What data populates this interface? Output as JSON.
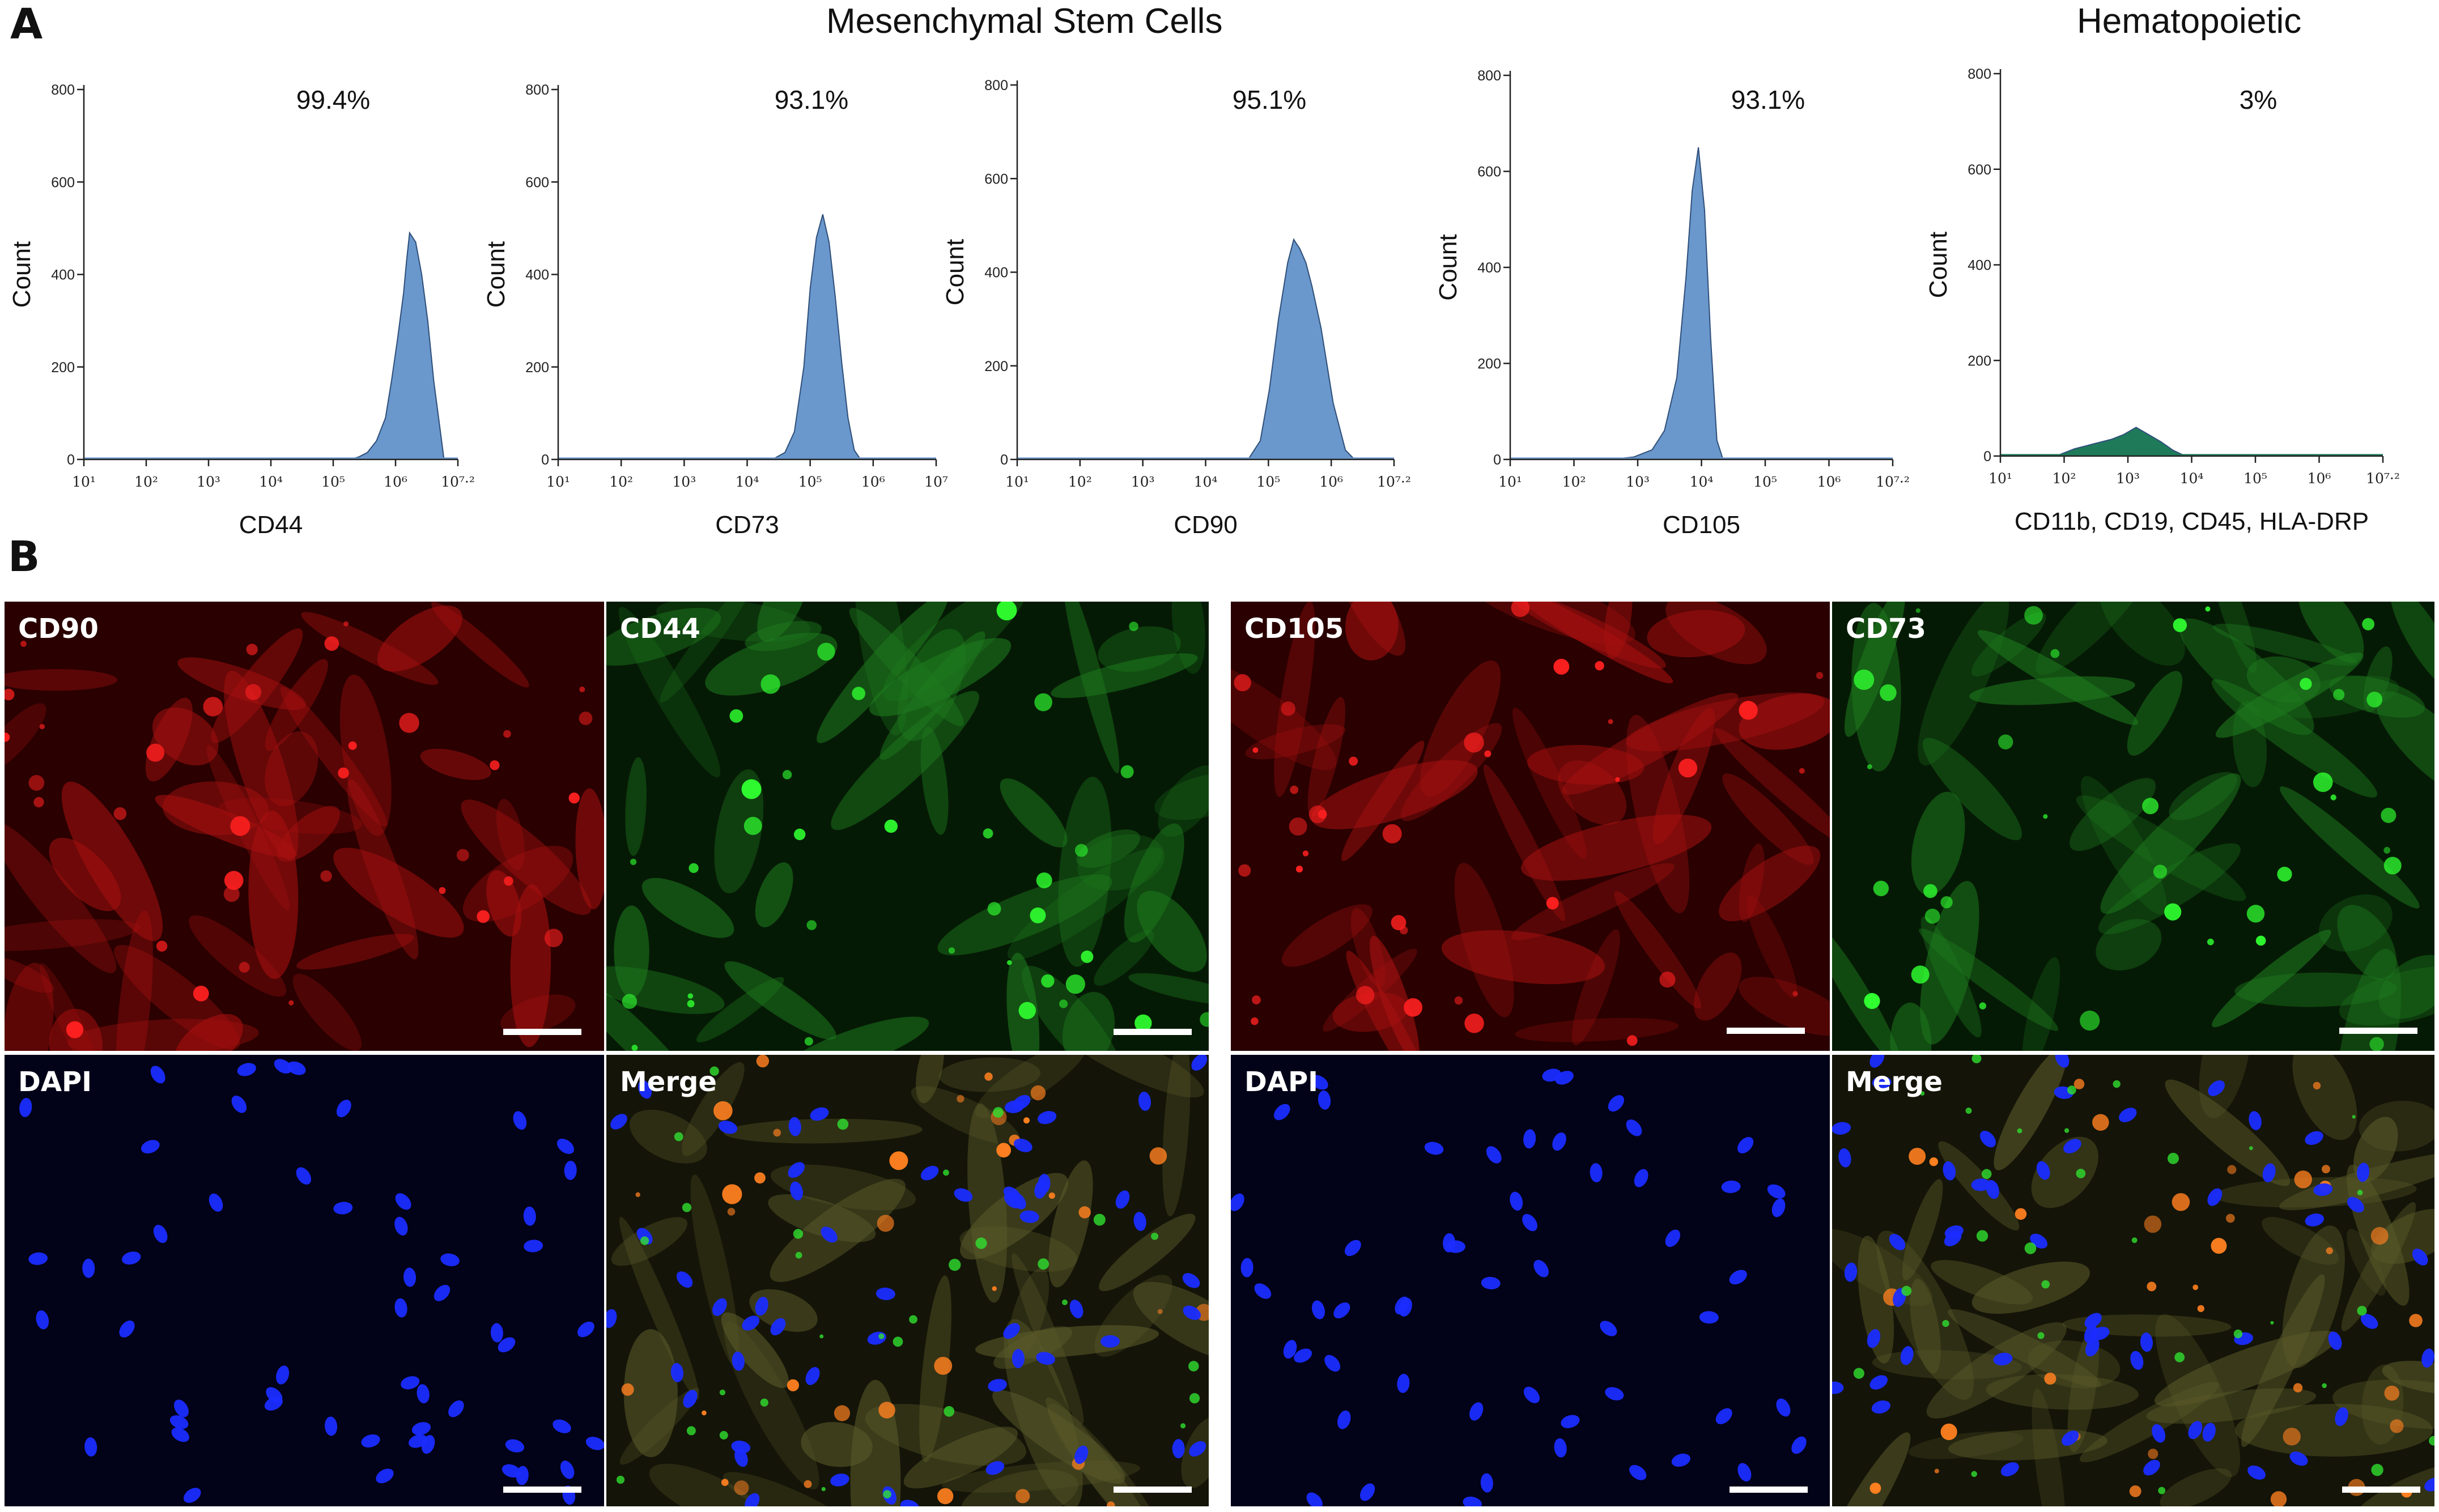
{
  "figure": {
    "panel_a_letter": "A",
    "panel_b_letter": "B",
    "groups": [
      {
        "title": "Mesenchymal Stem Cells"
      },
      {
        "title": "Hematopoietic"
      }
    ]
  },
  "chart_data": [
    {
      "type": "area",
      "ylabel": "Count",
      "xlabel": "CD44",
      "percentage": "99.4%",
      "color": "#6a98cc",
      "scale": "log10",
      "xlim": [
        1,
        7.2
      ],
      "ylim": [
        0,
        800
      ],
      "yticks": [
        "0",
        "200",
        "400",
        "600",
        "800"
      ],
      "xticks": [
        "10¹",
        "10²",
        "10³",
        "10⁴",
        "10⁵",
        "10⁶",
        "10⁷·²"
      ],
      "x": [
        5.4,
        5.55,
        5.7,
        5.85,
        6.0,
        6.1,
        6.2,
        6.3,
        6.35,
        6.4,
        6.5,
        6.6,
        6.7,
        6.8,
        6.9,
        6.97
      ],
      "y": [
        0,
        5,
        15,
        40,
        90,
        170,
        260,
        360,
        430,
        490,
        470,
        400,
        300,
        170,
        70,
        0
      ]
    },
    {
      "type": "area",
      "ylabel": "Count",
      "xlabel": "CD73",
      "percentage": "93.1%",
      "color": "#6a98cc",
      "scale": "log10",
      "xlim": [
        1,
        7
      ],
      "ylim": [
        0,
        800
      ],
      "yticks": [
        "0",
        "200",
        "400",
        "600",
        "800"
      ],
      "xticks": [
        "10¹",
        "10²",
        "10³",
        "10⁴",
        "10⁵",
        "10⁶",
        "10⁷"
      ],
      "x": [
        4.4,
        4.6,
        4.75,
        4.9,
        5.0,
        5.1,
        5.2,
        5.3,
        5.4,
        5.5,
        5.6,
        5.7,
        5.8
      ],
      "y": [
        0,
        15,
        60,
        200,
        370,
        480,
        530,
        470,
        350,
        210,
        90,
        20,
        0
      ]
    },
    {
      "type": "area",
      "ylabel": "Count",
      "xlabel": "CD90",
      "percentage": "95.1%",
      "color": "#6a98cc",
      "scale": "log10",
      "xlim": [
        1,
        7.2
      ],
      "ylim": [
        0,
        800
      ],
      "yticks": [
        "0",
        "200",
        "400",
        "600",
        "800"
      ],
      "xticks": [
        "10¹",
        "10²",
        "10³",
        "10⁴",
        "10⁵",
        "10⁶",
        "10⁷·²"
      ],
      "x": [
        4.8,
        5.0,
        5.15,
        5.3,
        5.45,
        5.55,
        5.65,
        5.75,
        5.85,
        6.0,
        6.2,
        6.4,
        6.55
      ],
      "y": [
        0,
        40,
        150,
        300,
        420,
        470,
        450,
        420,
        370,
        280,
        120,
        20,
        0
      ]
    },
    {
      "type": "area",
      "ylabel": "Count",
      "xlabel": "CD105",
      "percentage": "93.1%",
      "color": "#6a98cc",
      "scale": "log10",
      "xlim": [
        1,
        7.2
      ],
      "ylim": [
        0,
        800
      ],
      "yticks": [
        "0",
        "200",
        "400",
        "600",
        "800"
      ],
      "xticks": [
        "10¹",
        "10²",
        "10³",
        "10⁴",
        "10⁵",
        "10⁶",
        "10⁷·²"
      ],
      "x": [
        2.6,
        3.0,
        3.3,
        3.5,
        3.7,
        3.85,
        3.95,
        4.05,
        4.15,
        4.25,
        4.35,
        4.45
      ],
      "y": [
        0,
        5,
        20,
        60,
        170,
        380,
        560,
        650,
        520,
        250,
        40,
        0
      ]
    },
    {
      "type": "area",
      "ylabel": "Count",
      "xlabel": "CD11b, CD19, CD45, HLA-DRP",
      "percentage": "3%",
      "color": "#1f7a5a",
      "scale": "log10",
      "xlim": [
        1,
        7.2
      ],
      "ylim": [
        0,
        800
      ],
      "yticks": [
        "0",
        "200",
        "400",
        "600",
        "800"
      ],
      "xticks": [
        "10¹",
        "10²",
        "10³",
        "10⁴",
        "10⁵",
        "10⁶",
        "10⁷·²"
      ],
      "x": [
        1.9,
        2.2,
        2.5,
        2.8,
        3.0,
        3.2,
        3.4,
        3.6,
        3.8,
        4.0
      ],
      "y": [
        0,
        15,
        25,
        35,
        45,
        60,
        45,
        30,
        12,
        0
      ]
    }
  ],
  "microscopy": [
    {
      "label": "CD90",
      "channel": "red"
    },
    {
      "label": "CD44",
      "channel": "green"
    },
    {
      "label": "DAPI",
      "channel": "blue"
    },
    {
      "label": "Merge",
      "channel": "merge"
    },
    {
      "label": "CD105",
      "channel": "red"
    },
    {
      "label": "CD73",
      "channel": "green"
    },
    {
      "label": "DAPI",
      "channel": "blue"
    },
    {
      "label": "Merge",
      "channel": "merge"
    }
  ]
}
